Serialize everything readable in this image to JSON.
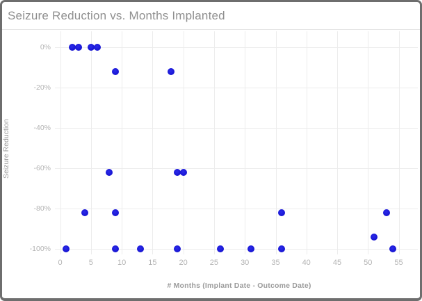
{
  "window": {
    "border_color": "#6e6e6e",
    "background_color": "#ffffff"
  },
  "colors": {
    "title_text": "#8f8f8f",
    "axis_title_text": "#9b9b9b",
    "tick_label_text": "#b3b3b3",
    "gridline": "#ececec",
    "marker": "#1d19d8"
  },
  "chart_data": {
    "type": "scatter",
    "title": "Seizure Reduction vs. Months Implanted",
    "xlabel": "# Months (Implant Date - Outcome Date)",
    "ylabel": "Seizure Reduction",
    "x_ticks": [
      0,
      5,
      10,
      15,
      20,
      25,
      30,
      35,
      40,
      45,
      50,
      55
    ],
    "y_ticks": [
      {
        "value": 0,
        "label": "0%"
      },
      {
        "value": -20,
        "label": "-20%"
      },
      {
        "value": -40,
        "label": "-40%"
      },
      {
        "value": -60,
        "label": "-60%"
      },
      {
        "value": -80,
        "label": "-80%"
      },
      {
        "value": -100,
        "label": "-100%"
      }
    ],
    "xlim": [
      -0.85,
      58.1
    ],
    "ylim": [
      -102.75,
      8
    ],
    "grid": true,
    "legend": "none",
    "points": [
      {
        "x": 1,
        "y": -100
      },
      {
        "x": 2,
        "y": 0
      },
      {
        "x": 3,
        "y": 0
      },
      {
        "x": 4,
        "y": -82
      },
      {
        "x": 5,
        "y": 0
      },
      {
        "x": 6,
        "y": 0
      },
      {
        "x": 8,
        "y": -62
      },
      {
        "x": 9,
        "y": -12
      },
      {
        "x": 9,
        "y": -82
      },
      {
        "x": 9,
        "y": -100
      },
      {
        "x": 13,
        "y": -100
      },
      {
        "x": 18,
        "y": -12
      },
      {
        "x": 19,
        "y": -62
      },
      {
        "x": 19,
        "y": -100
      },
      {
        "x": 20,
        "y": -62
      },
      {
        "x": 26,
        "y": -100
      },
      {
        "x": 31,
        "y": -100
      },
      {
        "x": 36,
        "y": -82
      },
      {
        "x": 36,
        "y": -100
      },
      {
        "x": 51,
        "y": -94
      },
      {
        "x": 53,
        "y": -82
      },
      {
        "x": 54,
        "y": -100
      }
    ]
  }
}
